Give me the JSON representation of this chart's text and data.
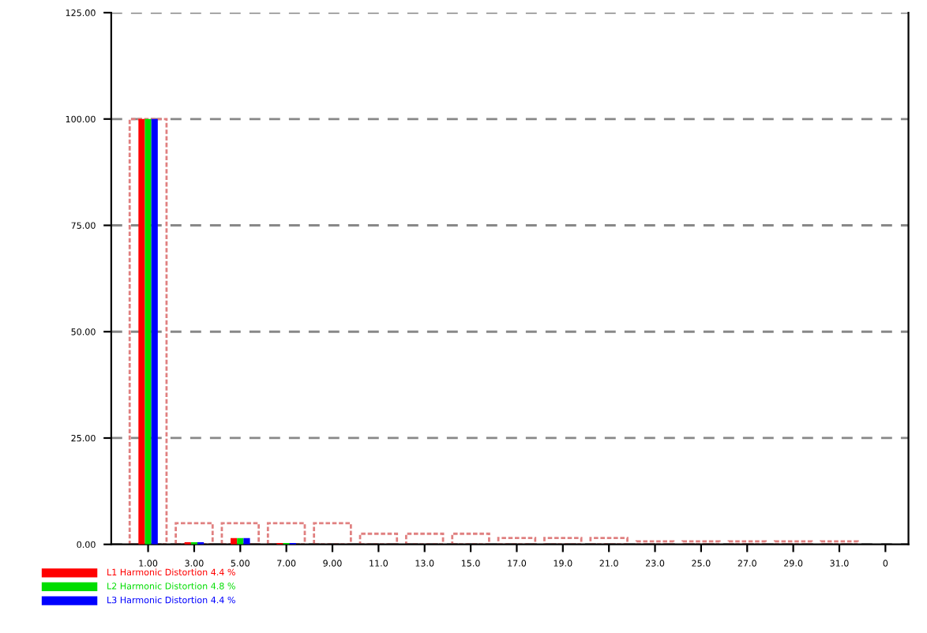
{
  "chart_data": {
    "type": "bar",
    "categories": [
      "1.00",
      "3.00",
      "5.00",
      "7.00",
      "9.00",
      "11.0",
      "13.0",
      "15.0",
      "17.0",
      "19.0",
      "21.0",
      "23.0",
      "25.0",
      "27.0",
      "29.0",
      "31.0",
      "0"
    ],
    "series": [
      {
        "color": "#e08080",
        "values": [
          100,
          5,
          5,
          5,
          5,
          2.5,
          2.5,
          2.5,
          1.5,
          1.5,
          1.5,
          0.7,
          0.7,
          0.7,
          0.7,
          0.7,
          null
        ]
      },
      {
        "name": "L1 Harmonic Distortion 4.4 %",
        "color": "#ff0000",
        "values": [
          100,
          0.5,
          1.5,
          0.3,
          0,
          0,
          0,
          0,
          0,
          0,
          0,
          0,
          0,
          0,
          0,
          0,
          null
        ]
      },
      {
        "name": "L2 Harmonic Distortion 4.8 %",
        "color": "#00dd00",
        "values": [
          100,
          0.5,
          1.5,
          0.3,
          0,
          0,
          0,
          0,
          0,
          0,
          0,
          0,
          0,
          0,
          0,
          0,
          null
        ]
      },
      {
        "name": "L3 Harmonic Distortion 4.4 %",
        "color": "#0000ff",
        "values": [
          100,
          0.5,
          1.5,
          0.3,
          0,
          0,
          0,
          0,
          0,
          0,
          0,
          0,
          0,
          0,
          0,
          0,
          null
        ]
      }
    ],
    "ylim": [
      0,
      125
    ],
    "yticks": [
      {
        "value": 0,
        "label": "0.00"
      },
      {
        "value": 25,
        "label": "25.00"
      },
      {
        "value": 50,
        "label": "50.00"
      },
      {
        "value": 75,
        "label": "75.00"
      },
      {
        "value": 100,
        "label": "100.00"
      },
      {
        "value": 125,
        "label": "125.00"
      }
    ],
    "grid": "y",
    "legend": "bottom left"
  }
}
